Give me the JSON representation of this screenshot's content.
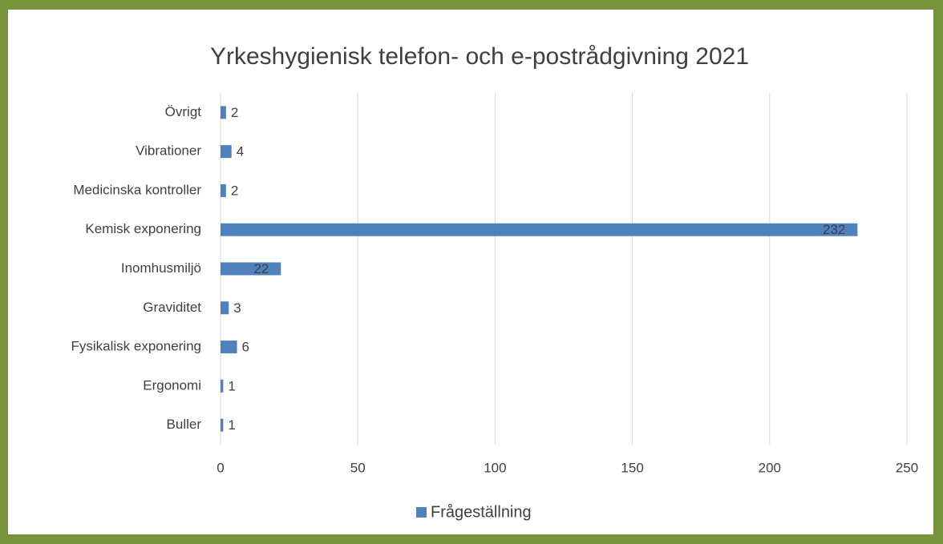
{
  "chart_data": {
    "type": "bar",
    "orientation": "horizontal",
    "title": "Yrkeshygienisk telefon- och e-postrådgivning 2021",
    "categories": [
      "Övrigt",
      "Vibrationer",
      "Medicinska kontroller",
      "Kemisk exponering",
      "Inomhusmiljö",
      "Graviditet",
      "Fysikalisk exponering",
      "Ergonomi",
      "Buller"
    ],
    "series": [
      {
        "name": "Frågeställning",
        "color": "#4f81bd",
        "values": [
          2,
          4,
          2,
          232,
          22,
          3,
          6,
          1,
          1
        ]
      }
    ],
    "xlim": [
      0,
      250
    ],
    "xticks": [
      0,
      50,
      100,
      150,
      200,
      250
    ],
    "grid": true,
    "legend": "bottom"
  }
}
